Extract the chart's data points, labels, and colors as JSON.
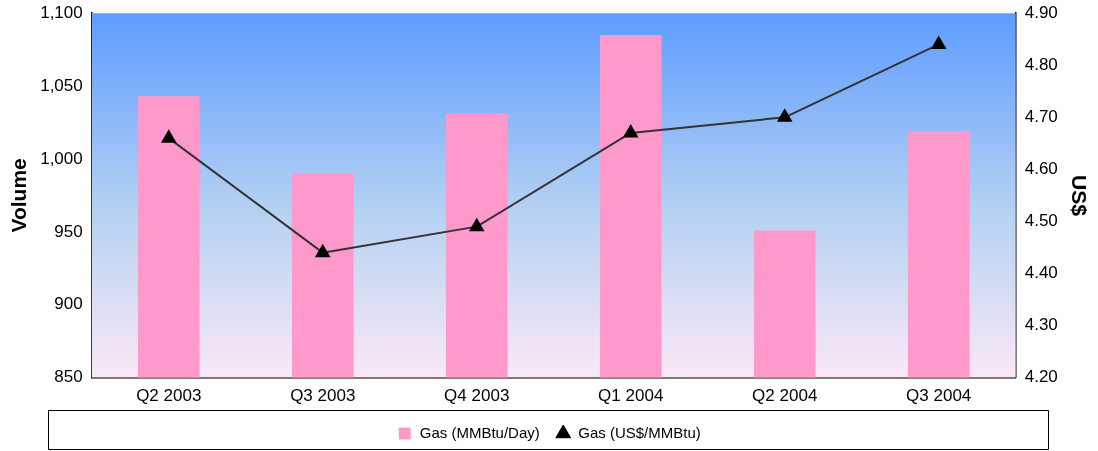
{
  "chart_data": {
    "type": "bar",
    "ylabel": "Volume",
    "y2label": "US$",
    "categories": [
      "Q2 2003",
      "Q3 2003",
      "Q4 2003",
      "Q1 2004",
      "Q2 2004",
      "Q3 2004"
    ],
    "series": [
      {
        "name": "Gas (MMBtu/Day)",
        "color": "#ff99cc",
        "values": [
          1043,
          990,
          1031,
          1085,
          951,
          1019
        ]
      },
      {
        "name": "Gas (US$/MMBtu)",
        "type": "line",
        "axis": "y2",
        "color": "#333333",
        "marker": "triangle",
        "values": [
          4.66,
          4.44,
          4.49,
          4.67,
          4.7,
          4.84
        ]
      }
    ],
    "ylim": [
      850,
      1100
    ],
    "yticks": [
      {
        "value": 850,
        "label": "850"
      },
      {
        "value": 900,
        "label": "900"
      },
      {
        "value": 950,
        "label": "950"
      },
      {
        "value": 1000,
        "label": "1,000"
      },
      {
        "value": 1050,
        "label": "1,050"
      },
      {
        "value": 1100,
        "label": "1,100"
      }
    ],
    "y2lim": [
      4.2,
      4.9
    ],
    "y2ticks": [
      {
        "value": 4.2,
        "label": "4.20"
      },
      {
        "value": 4.3,
        "label": "4.30"
      },
      {
        "value": 4.4,
        "label": "4.40"
      },
      {
        "value": 4.5,
        "label": "4.50"
      },
      {
        "value": 4.6,
        "label": "4.60"
      },
      {
        "value": 4.7,
        "label": "4.70"
      },
      {
        "value": 4.8,
        "label": "4.80"
      },
      {
        "value": 4.9,
        "label": "4.90"
      }
    ],
    "legend": "bottom",
    "grid": false
  }
}
